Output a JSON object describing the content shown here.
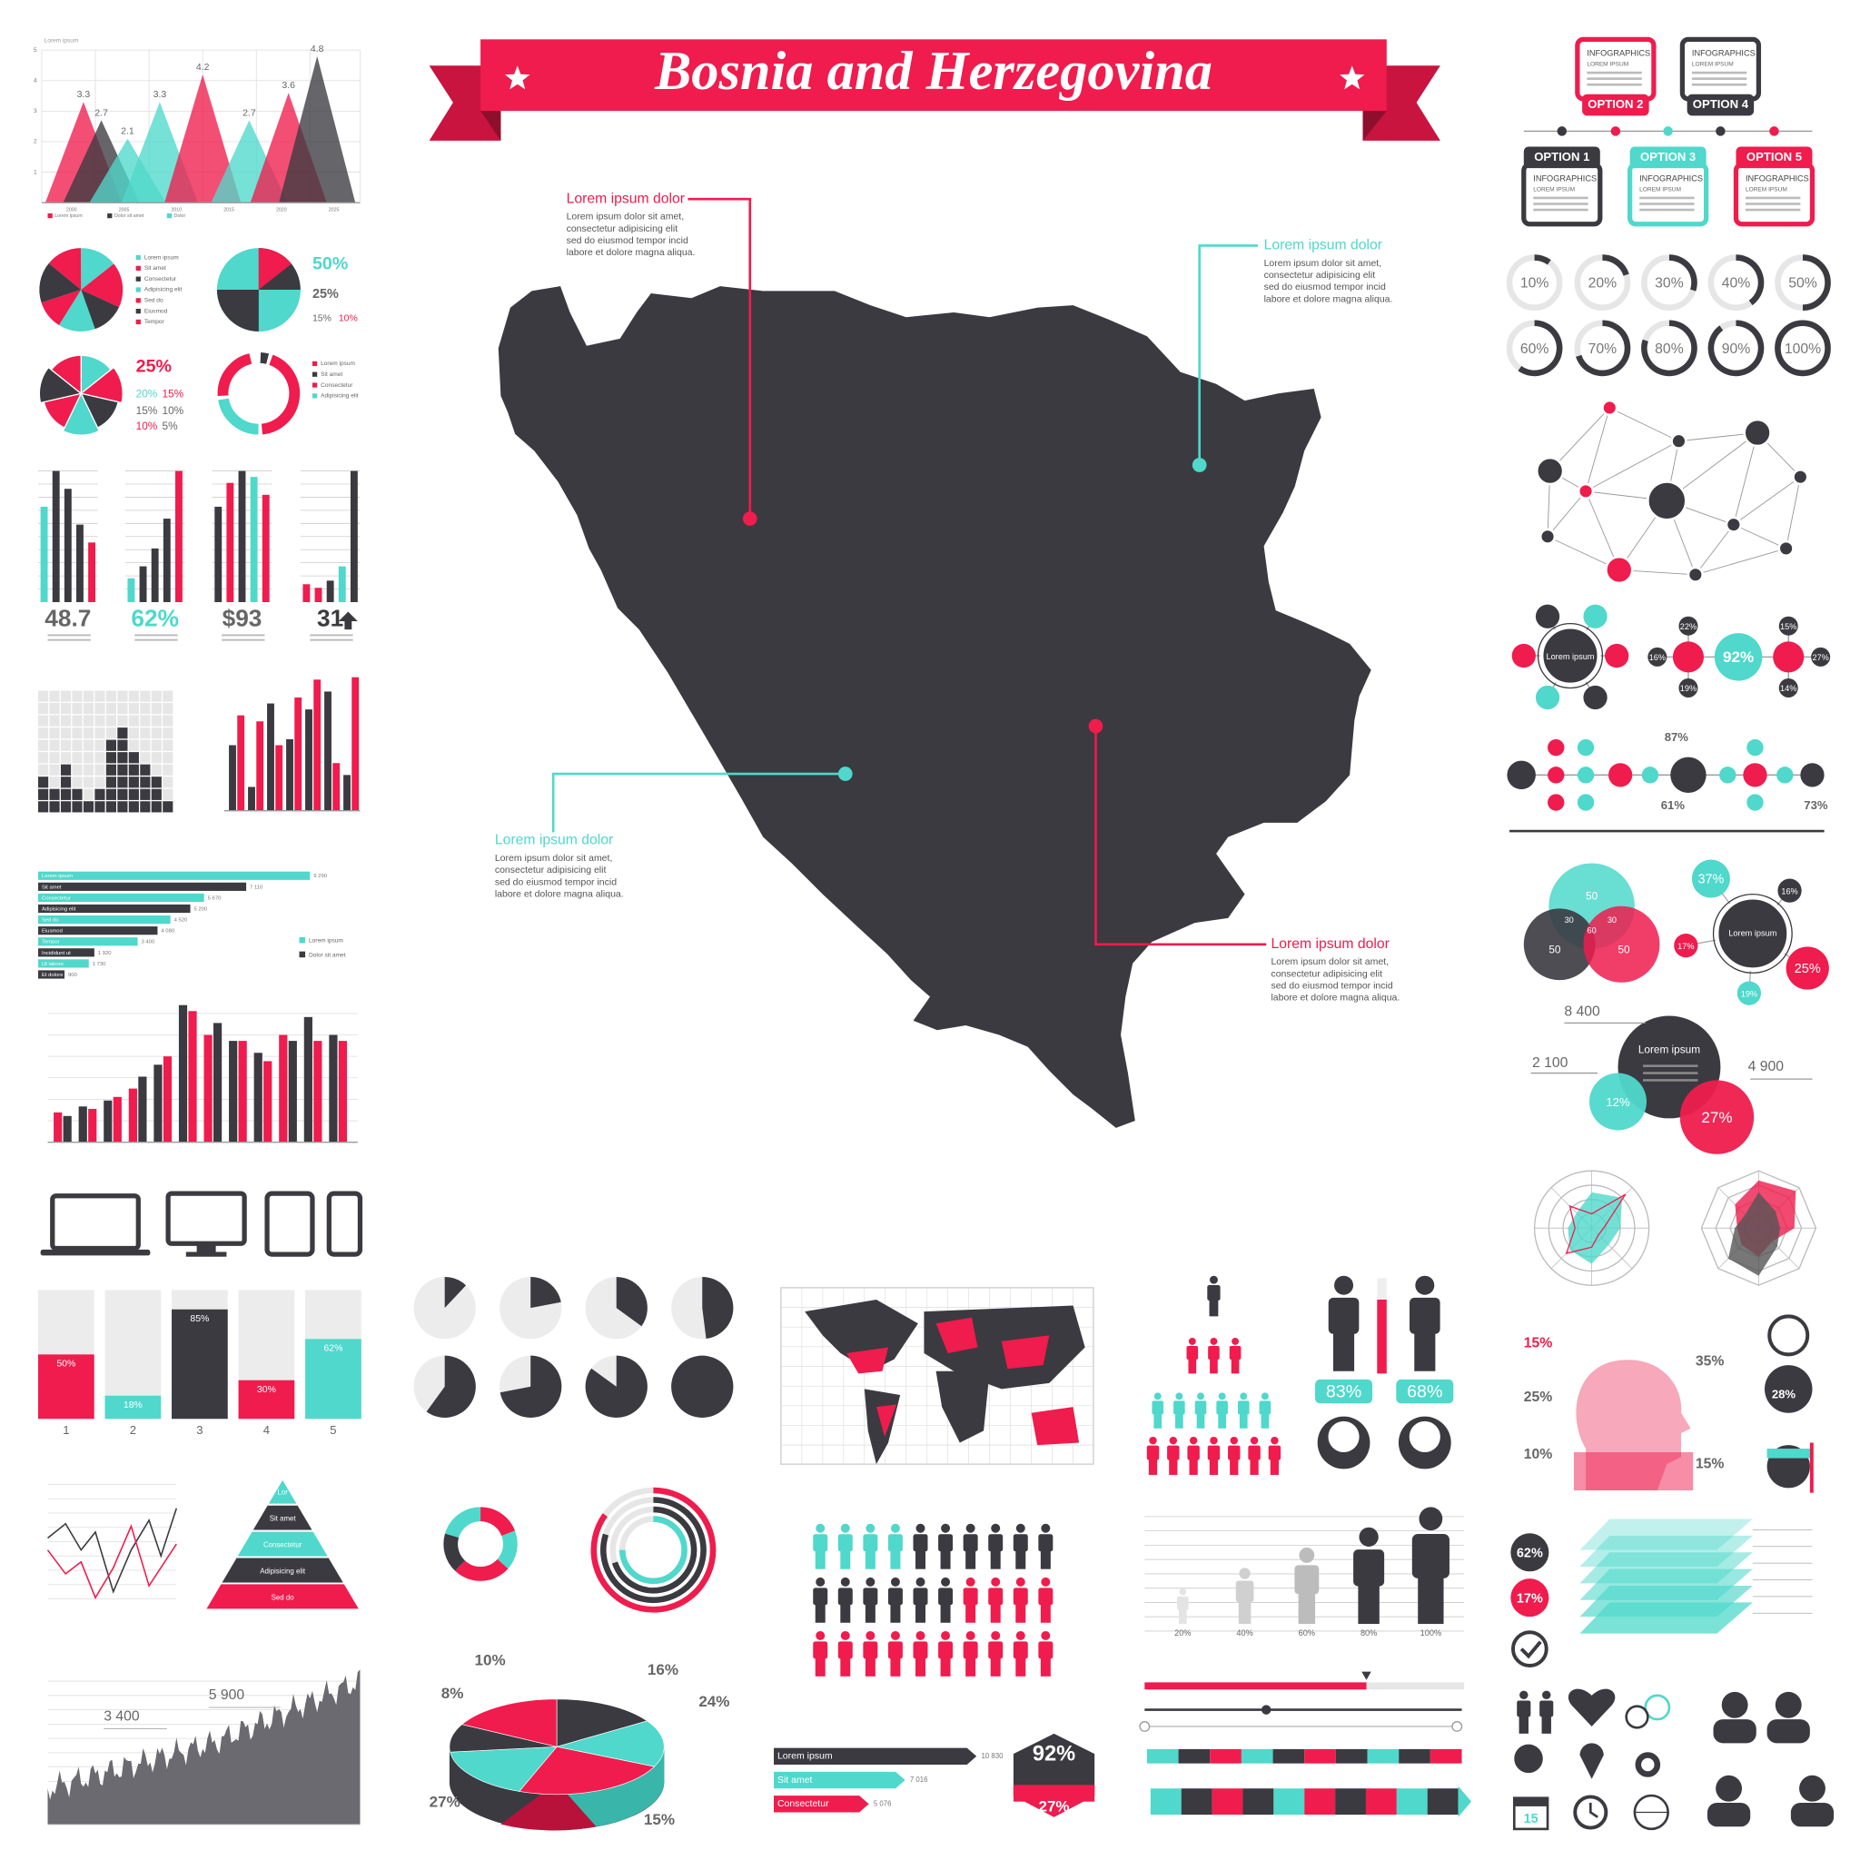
{
  "title": "Bosnia and Herzegovina",
  "callouts": [
    {
      "heading": "Lorem ipsum dolor",
      "body": [
        "Lorem ipsum dolor sit amet,",
        "consectetur adipisicing elit",
        "sed do eiusmod tempor incid",
        "labore et dolore magna aliqua."
      ]
    },
    {
      "heading": "Lorem ipsum dolor",
      "body": [
        "Lorem ipsum dolor sit amet,",
        "consectetur adipisicing elit",
        "sed do eiusmod tempor incid",
        "labore et dolore magna aliqua."
      ]
    },
    {
      "heading": "Lorem ipsum dolor",
      "body": [
        "Lorem ipsum dolor sit amet,",
        "consectetur adipisicing elit",
        "sed do eiusmod tempor incid",
        "labore et dolore magna aliqua."
      ]
    },
    {
      "heading": "Lorem ipsum dolor",
      "body": [
        "Lorem ipsum dolor sit amet,",
        "consectetur adipisicing elit",
        "sed do eiusmod tempor incid",
        "labore et dolore magna aliqua."
      ]
    }
  ],
  "options": [
    {
      "label": "OPTION 1",
      "heading": "INFOGRAPHICS",
      "sub": "LOREM IPSUM"
    },
    {
      "label": "OPTION 2",
      "heading": "INFOGRAPHICS",
      "sub": "LOREM IPSUM"
    },
    {
      "label": "OPTION 3",
      "heading": "INFOGRAPHICS",
      "sub": "LOREM IPSUM"
    },
    {
      "label": "OPTION 4",
      "heading": "INFOGRAPHICS",
      "sub": "LOREM IPSUM"
    },
    {
      "label": "OPTION 5",
      "heading": "INFOGRAPHICS",
      "sub": "LOREM IPSUM"
    }
  ],
  "progress_rings": [
    {
      "value": 10,
      "label": "10%"
    },
    {
      "value": 20,
      "label": "20%"
    },
    {
      "value": 30,
      "label": "30%"
    },
    {
      "value": 40,
      "label": "40%"
    },
    {
      "value": 50,
      "label": "50%"
    },
    {
      "value": 60,
      "label": "60%"
    },
    {
      "value": 70,
      "label": "70%"
    },
    {
      "value": 80,
      "label": "80%"
    },
    {
      "value": 90,
      "label": "90%"
    },
    {
      "value": 100,
      "label": "100%"
    }
  ],
  "peak_chart": {
    "ylim": [
      0,
      5
    ],
    "yticks": [
      1,
      2,
      3,
      4,
      5
    ],
    "values": [
      3.3,
      2.7,
      2.1,
      3.3,
      4.2,
      2.7,
      3.6,
      4.8
    ],
    "xticks": [
      "2000",
      "2005",
      "2010",
      "2015",
      "2020",
      "2025"
    ],
    "legend": [
      "Lorem ipsum",
      "Dolor sit amet",
      "Dolor"
    ]
  },
  "pie_legend": [
    "Lorem ipsum",
    "Sit amet",
    "Consectetur",
    "Adipisicing elit",
    "Sed do",
    "Eiusmod",
    "Tempor"
  ],
  "pie_labels": [
    "50%",
    "25%",
    "15%",
    "10%",
    "25%",
    "20%",
    "15%",
    "15%",
    "10%",
    "10%",
    "5%"
  ],
  "stats": [
    "48.7",
    "62%",
    "$93",
    "31"
  ],
  "hbar_chart": {
    "categories": [
      "Lorem ipsum",
      "Sit amet",
      "Consectetur",
      "Adipisicing elit",
      "Sed do",
      "Eiusmod",
      "Tempor",
      "Incididunt ut",
      "Ut labore",
      "Et dolore"
    ],
    "values": [
      9290,
      7110,
      5670,
      5200,
      4520,
      4080,
      3400,
      1920,
      1730,
      900
    ],
    "value_labels": [
      "9 290",
      "7 110",
      "5 670",
      "5 200",
      "4 520",
      "4 080",
      "3 400",
      "1 920",
      "1 730",
      "900"
    ],
    "legend": [
      "Lorem ipsum",
      "Dolor sit amet"
    ]
  },
  "percent_columns": {
    "categories": [
      "1",
      "2",
      "3",
      "4",
      "5"
    ],
    "ylim": [
      0,
      100
    ],
    "values": [
      50,
      18,
      85,
      30,
      62
    ],
    "value_labels": [
      "50%",
      "18%",
      "85%",
      "30%",
      "62%"
    ]
  },
  "pyramid": [
    "Lor",
    "Sit amet",
    "Consectetur",
    "Adipisicing elit",
    "Sed do"
  ],
  "pie3d_labels": [
    "10%",
    "16%",
    "8%",
    "24%",
    "27%",
    "15%"
  ],
  "ribbon_bars": {
    "categories": [
      "Lorem ipsum",
      "Sit amet",
      "Consectetur"
    ],
    "values": [
      10830,
      7016,
      5076
    ],
    "value_labels": [
      "10 830",
      "7 016",
      "5 076"
    ]
  },
  "hex_stats": [
    "92%",
    "27%"
  ],
  "people_stats": [
    "83%",
    "68%"
  ],
  "people_bar_ticks": [
    "20%",
    "40%",
    "60%",
    "80%",
    "100%"
  ],
  "head_stats": [
    "15%",
    "35%",
    "25%",
    "28%",
    "10%",
    "15%"
  ],
  "node_center": "Lorem ipsum",
  "node_stats": [
    "22%",
    "16%",
    "92%",
    "19%",
    "15%",
    "27%",
    "14%"
  ],
  "flow_stats": [
    "87%",
    "61%",
    "73%"
  ],
  "venn": [
    "50",
    "30",
    "60",
    "30",
    "50",
    "50"
  ],
  "bubbles_a": {
    "center": "Lorem ipsum",
    "labels": [
      "37%",
      "16%",
      "17%",
      "25%",
      "19%"
    ]
  },
  "bubbles_b": {
    "center": "Lorem ipsum",
    "labels": [
      "8 400",
      "2 100",
      "4 900",
      "12%",
      "27%"
    ]
  },
  "badges": [
    "62%",
    "17%"
  ],
  "area_labels": [
    "3 400",
    "5 900"
  ],
  "calendar_day": "15"
}
